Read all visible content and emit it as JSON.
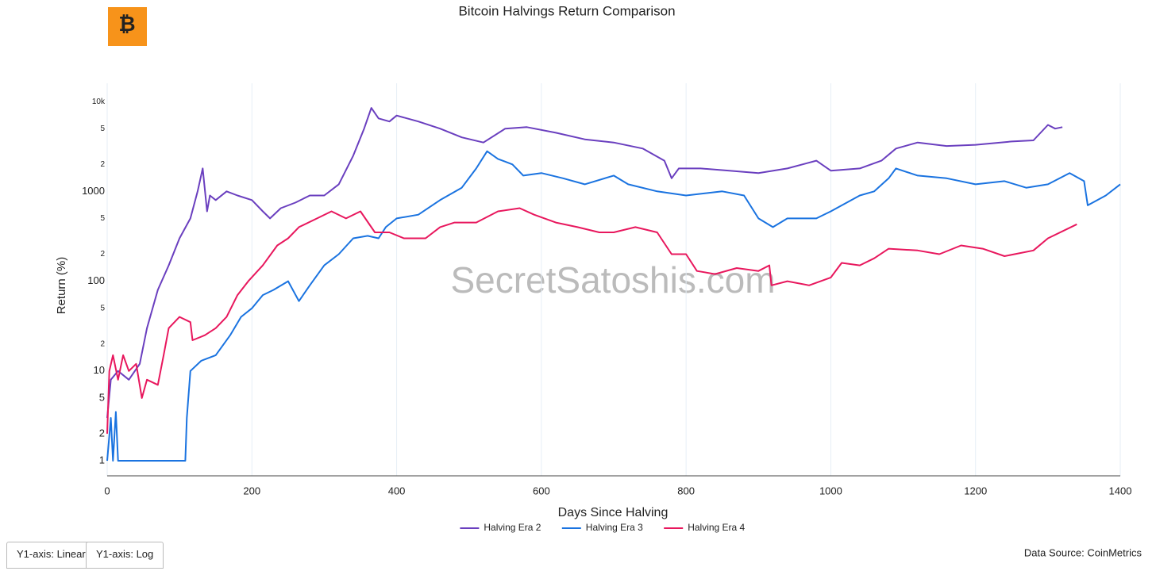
{
  "chart_data": {
    "type": "line",
    "title": "Bitcoin Halvings Return Comparison",
    "x_label": "Days Since Halving",
    "y_label": "Return (%)",
    "watermark": "SecretSatoshis.com",
    "source": "Data Source: CoinMetrics",
    "buttons": [
      "Y1-axis: Linear",
      "Y1-axis: Log"
    ],
    "log_y": true,
    "grid": true,
    "legend": "bottom",
    "xlim": [
      0,
      1400
    ],
    "xticks": [
      0,
      200,
      400,
      600,
      800,
      1000,
      1200,
      1400
    ],
    "ylim": [
      0.68,
      16000
    ],
    "yticks": [
      1,
      2,
      5,
      10,
      {
        "value": 20,
        "label": "2"
      },
      {
        "value": 50,
        "label": "5"
      },
      100,
      {
        "value": 200,
        "label": "2"
      },
      {
        "value": 500,
        "label": "5"
      },
      1000,
      {
        "value": 2000,
        "label": "2"
      },
      {
        "value": 5000,
        "label": "5"
      },
      {
        "value": 10000,
        "label": "10k"
      }
    ],
    "series": [
      {
        "name": "Halving Era 2",
        "color": "#6a3fbf",
        "x": [
          0,
          5,
          15,
          30,
          45,
          55,
          70,
          85,
          100,
          115,
          125,
          132,
          138,
          142,
          150,
          165,
          180,
          200,
          215,
          225,
          240,
          260,
          280,
          300,
          320,
          340,
          355,
          365,
          375,
          390,
          400,
          430,
          460,
          490,
          520,
          550,
          580,
          620,
          660,
          700,
          740,
          770,
          780,
          790,
          820,
          860,
          900,
          940,
          980,
          1000,
          1040,
          1070,
          1090,
          1120,
          1160,
          1200,
          1250,
          1280,
          1300,
          1310,
          1320
        ],
        "values": [
          3,
          8,
          10,
          8,
          12,
          30,
          80,
          150,
          300,
          500,
          1000,
          1800,
          600,
          900,
          800,
          1000,
          900,
          800,
          600,
          500,
          650,
          750,
          900,
          900,
          1200,
          2500,
          5000,
          8500,
          6500,
          6000,
          7000,
          6000,
          5000,
          4000,
          3500,
          5000,
          5200,
          4500,
          3800,
          3500,
          3000,
          2200,
          1400,
          1800,
          1800,
          1700,
          1600,
          1800,
          2200,
          1700,
          1800,
          2200,
          3000,
          3500,
          3200,
          3300,
          3600,
          3700,
          5500,
          5000,
          5200
        ]
      },
      {
        "name": "Halving Era 3",
        "color": "#1a73e0",
        "x": [
          0,
          5,
          8,
          12,
          15,
          20,
          108,
          110,
          115,
          130,
          150,
          170,
          185,
          200,
          215,
          230,
          250,
          265,
          280,
          300,
          320,
          340,
          360,
          375,
          385,
          400,
          430,
          460,
          490,
          510,
          525,
          540,
          560,
          575,
          600,
          630,
          660,
          700,
          720,
          760,
          800,
          850,
          880,
          900,
          920,
          940,
          980,
          1000,
          1040,
          1060,
          1080,
          1090,
          1120,
          1160,
          1200,
          1240,
          1270,
          1300,
          1330,
          1350,
          1355,
          1380,
          1400
        ],
        "values": [
          1,
          3,
          1,
          3.5,
          1,
          1,
          1,
          3,
          10,
          13,
          15,
          25,
          40,
          50,
          70,
          80,
          100,
          60,
          90,
          150,
          200,
          300,
          320,
          300,
          400,
          500,
          550,
          800,
          1100,
          1800,
          2800,
          2300,
          2000,
          1500,
          1600,
          1400,
          1200,
          1500,
          1200,
          1000,
          900,
          1000,
          900,
          500,
          400,
          500,
          500,
          600,
          900,
          1000,
          1400,
          1800,
          1500,
          1400,
          1200,
          1300,
          1100,
          1200,
          1600,
          1300,
          700,
          900,
          1200
        ]
      },
      {
        "name": "Halving Era 4",
        "color": "#e8175d",
        "x": [
          0,
          3,
          8,
          15,
          22,
          30,
          40,
          48,
          55,
          70,
          78,
          85,
          100,
          115,
          118,
          135,
          150,
          165,
          180,
          195,
          215,
          235,
          250,
          265,
          290,
          310,
          330,
          350,
          370,
          390,
          410,
          440,
          460,
          480,
          510,
          540,
          570,
          590,
          620,
          650,
          680,
          700,
          730,
          760,
          780,
          800,
          815,
          840,
          870,
          900,
          915,
          918,
          940,
          970,
          1000,
          1015,
          1040,
          1060,
          1080,
          1120,
          1150,
          1180,
          1210,
          1240,
          1280,
          1300,
          1340
        ],
        "values": [
          2,
          10,
          15,
          8,
          15,
          10,
          12,
          5,
          8,
          7,
          15,
          30,
          40,
          35,
          22,
          25,
          30,
          40,
          70,
          100,
          150,
          250,
          300,
          400,
          500,
          600,
          500,
          600,
          350,
          350,
          300,
          300,
          400,
          450,
          450,
          600,
          650,
          550,
          450,
          400,
          350,
          350,
          400,
          350,
          200,
          200,
          130,
          120,
          140,
          130,
          150,
          90,
          100,
          90,
          110,
          160,
          150,
          180,
          230,
          220,
          200,
          250,
          230,
          190,
          220,
          300,
          430
        ]
      }
    ]
  }
}
